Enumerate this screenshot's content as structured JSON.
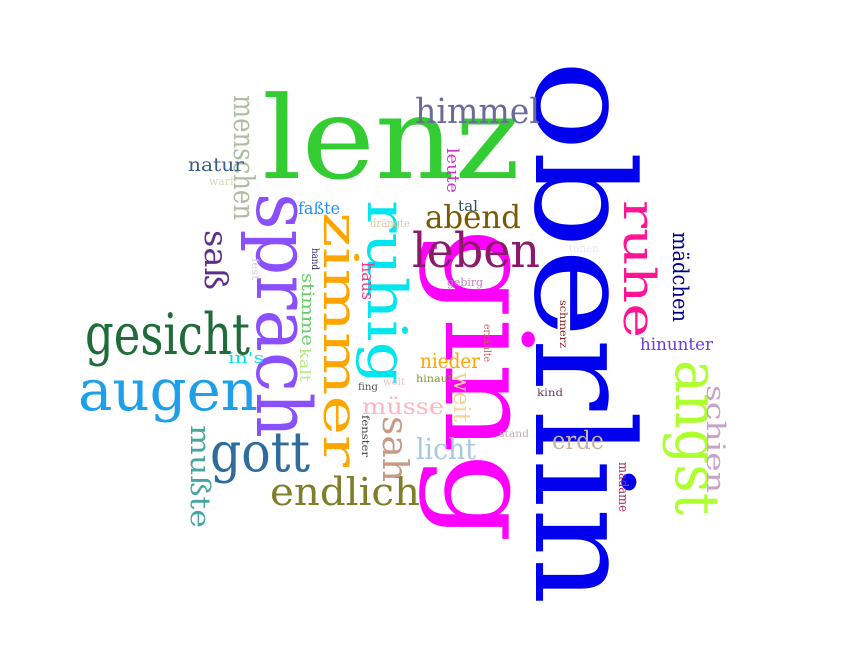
{
  "words": [
    {
      "text": "oberlin",
      "color": "#0000ee"
    },
    {
      "text": "ging",
      "color": "#ff00ff"
    },
    {
      "text": "lenz",
      "color": "#33cc33"
    },
    {
      "text": "sprach",
      "color": "#8a4fff"
    },
    {
      "text": "zimmer",
      "color": "#ffa500"
    },
    {
      "text": "ruhig",
      "color": "#00e5ee"
    },
    {
      "text": "augen",
      "color": "#1e9fea"
    },
    {
      "text": "gesicht",
      "color": "#1f6b3a"
    },
    {
      "text": "gott",
      "color": "#2e6b9e"
    },
    {
      "text": "endlich",
      "color": "#7f7f2a"
    },
    {
      "text": "leben",
      "color": "#8b1a6b"
    },
    {
      "text": "himmel",
      "color": "#6b6b9a"
    },
    {
      "text": "abend",
      "color": "#7a5a00"
    },
    {
      "text": "ruhe",
      "color": "#ff1493"
    },
    {
      "text": "angst",
      "color": "#adff2f"
    },
    {
      "text": "saß",
      "color": "#5d2e8c"
    },
    {
      "text": "menschen",
      "color": "#b0bca0"
    },
    {
      "text": "mußte",
      "color": "#48a6a0"
    },
    {
      "text": "schien",
      "color": "#c8a2c8"
    },
    {
      "text": "mädchen",
      "color": "#00008b"
    },
    {
      "text": "hinunter",
      "color": "#6a3ddf"
    },
    {
      "text": "müsse",
      "color": "#ffb6c1"
    },
    {
      "text": "licht",
      "color": "#a8c8e0"
    },
    {
      "text": "erde",
      "color": "#c8b4a0"
    },
    {
      "text": "sah",
      "color": "#c79a86"
    },
    {
      "text": "weit",
      "color": "#f2d49b"
    },
    {
      "text": "nieder",
      "color": "#ffa500"
    },
    {
      "text": "natur",
      "color": "#3a5e8a"
    },
    {
      "text": "faßte",
      "color": "#1e90ff"
    },
    {
      "text": "stimme",
      "color": "#66cd66"
    },
    {
      "text": "haus",
      "color": "#ee3a8c"
    },
    {
      "text": "leute",
      "color": "#cc33cc"
    },
    {
      "text": "tal",
      "color": "#2f4f4f"
    },
    {
      "text": "in's",
      "color": "#00e5ee"
    },
    {
      "text": "kalt",
      "color": "#b8e986"
    },
    {
      "text": "madame",
      "color": "#b03060"
    },
    {
      "text": "schmerz",
      "color": "#8b1a1a"
    },
    {
      "text": "erzählte",
      "color": "#cd5c5c"
    },
    {
      "text": "warf",
      "color": "#d8d8c0"
    },
    {
      "text": "drängte",
      "color": "#e0c8a0"
    },
    {
      "text": "gebirg",
      "color": "#c080c0"
    },
    {
      "text": "hand",
      "color": "#2f2f6f"
    },
    {
      "text": "fest",
      "color": "#d0d0d0"
    },
    {
      "text": "tönen",
      "color": "#e8e8f0"
    },
    {
      "text": "fing",
      "color": "#555555"
    },
    {
      "text": "welt",
      "color": "#f0c0d0"
    },
    {
      "text": "hinauf",
      "color": "#7c9a2a"
    },
    {
      "text": "fenster",
      "color": "#444444"
    },
    {
      "text": "stand",
      "color": "#c0b0b0"
    },
    {
      "text": "kind",
      "color": "#6b3a5a"
    }
  ]
}
